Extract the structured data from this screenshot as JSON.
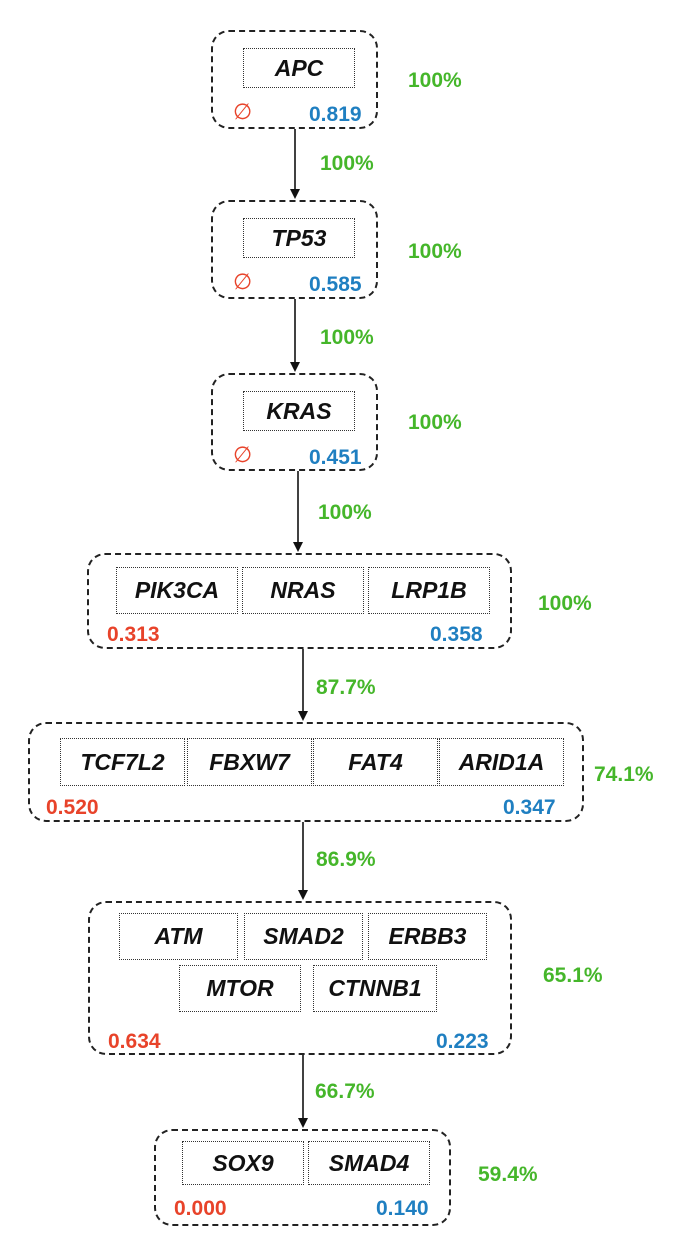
{
  "nodes": [
    {
      "genes": [
        "APC"
      ],
      "left_value": "∅",
      "right_value": "0.819",
      "node_percent": "100%"
    },
    {
      "genes": [
        "TP53"
      ],
      "left_value": "∅",
      "right_value": "0.585",
      "node_percent": "100%"
    },
    {
      "genes": [
        "KRAS"
      ],
      "left_value": "∅",
      "right_value": "0.451",
      "node_percent": "100%"
    },
    {
      "genes": [
        "PIK3CA",
        "NRAS",
        "LRP1B"
      ],
      "left_value": "0.313",
      "right_value": "0.358",
      "node_percent": "100%"
    },
    {
      "genes": [
        "TCF7L2",
        "FBXW7",
        "FAT4",
        "ARID1A"
      ],
      "left_value": "0.520",
      "right_value": "0.347",
      "node_percent": "74.1%"
    },
    {
      "genes": [
        "ATM",
        "SMAD2",
        "ERBB3",
        "MTOR",
        "CTNNB1"
      ],
      "left_value": "0.634",
      "right_value": "0.223",
      "node_percent": "65.1%"
    },
    {
      "genes": [
        "SOX9",
        "SMAD4"
      ],
      "left_value": "0.000",
      "right_value": "0.140",
      "node_percent": "59.4%"
    }
  ],
  "edges": [
    {
      "percent": "100%"
    },
    {
      "percent": "100%"
    },
    {
      "percent": "100%"
    },
    {
      "percent": "87.7%"
    },
    {
      "percent": "86.9%"
    },
    {
      "percent": "66.7%"
    }
  ],
  "colors": {
    "left_value": "#e8432a",
    "right_value": "#1f7fc1",
    "percent": "#45b62a"
  }
}
